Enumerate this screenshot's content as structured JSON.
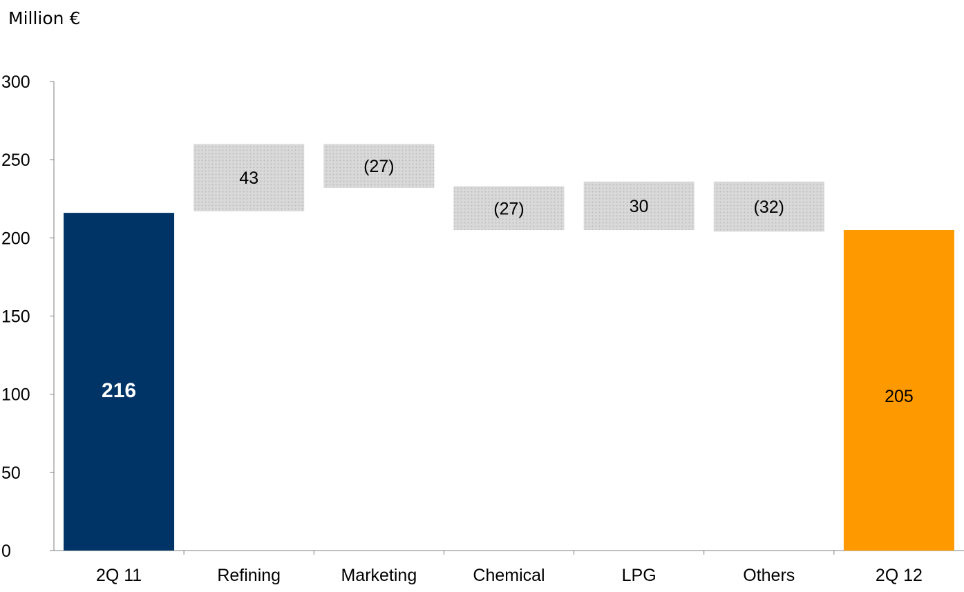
{
  "chart_data": {
    "type": "bar",
    "subtype": "waterfall",
    "title": "",
    "unit_label": "Million €",
    "xlabel": "",
    "ylabel": "",
    "ylim": [
      0,
      300
    ],
    "y_ticks": [
      0,
      50,
      100,
      150,
      200,
      250,
      300
    ],
    "y_tick_labels": [
      "0",
      "50",
      "100",
      "150",
      "200",
      "250",
      "300"
    ],
    "grid": false,
    "legend": "none",
    "categories": [
      "2Q 11",
      "Refining",
      "Marketing",
      "Chemical",
      "LPG",
      "Others",
      "2Q 12"
    ],
    "bars": [
      {
        "category": "2Q 11",
        "kind": "total",
        "start": 0,
        "end": 216,
        "label": "216",
        "label_weight": "bold",
        "label_color": "#ffffff"
      },
      {
        "category": "Refining",
        "kind": "delta",
        "start": 217,
        "end": 260,
        "label": "43"
      },
      {
        "category": "Marketing",
        "kind": "delta",
        "start": 260,
        "end": 232,
        "label": "(27)"
      },
      {
        "category": "Chemical",
        "kind": "delta",
        "start": 233,
        "end": 205,
        "label": "(27)"
      },
      {
        "category": "LPG",
        "kind": "delta",
        "start": 205,
        "end": 236,
        "label": "30"
      },
      {
        "category": "Others",
        "kind": "delta",
        "start": 236,
        "end": 204,
        "label": "(32)"
      },
      {
        "category": "2Q 12",
        "kind": "total",
        "start": 0,
        "end": 205,
        "label": "205",
        "label_weight": "normal",
        "label_color": "#000000"
      }
    ],
    "colors": {
      "start_total": "#003366",
      "end_total": "#ff9900",
      "delta_fill": "#d9d9d9",
      "delta_dot": "#bfbfbf",
      "axis": "#7f7f7f",
      "text": "#000000"
    }
  }
}
